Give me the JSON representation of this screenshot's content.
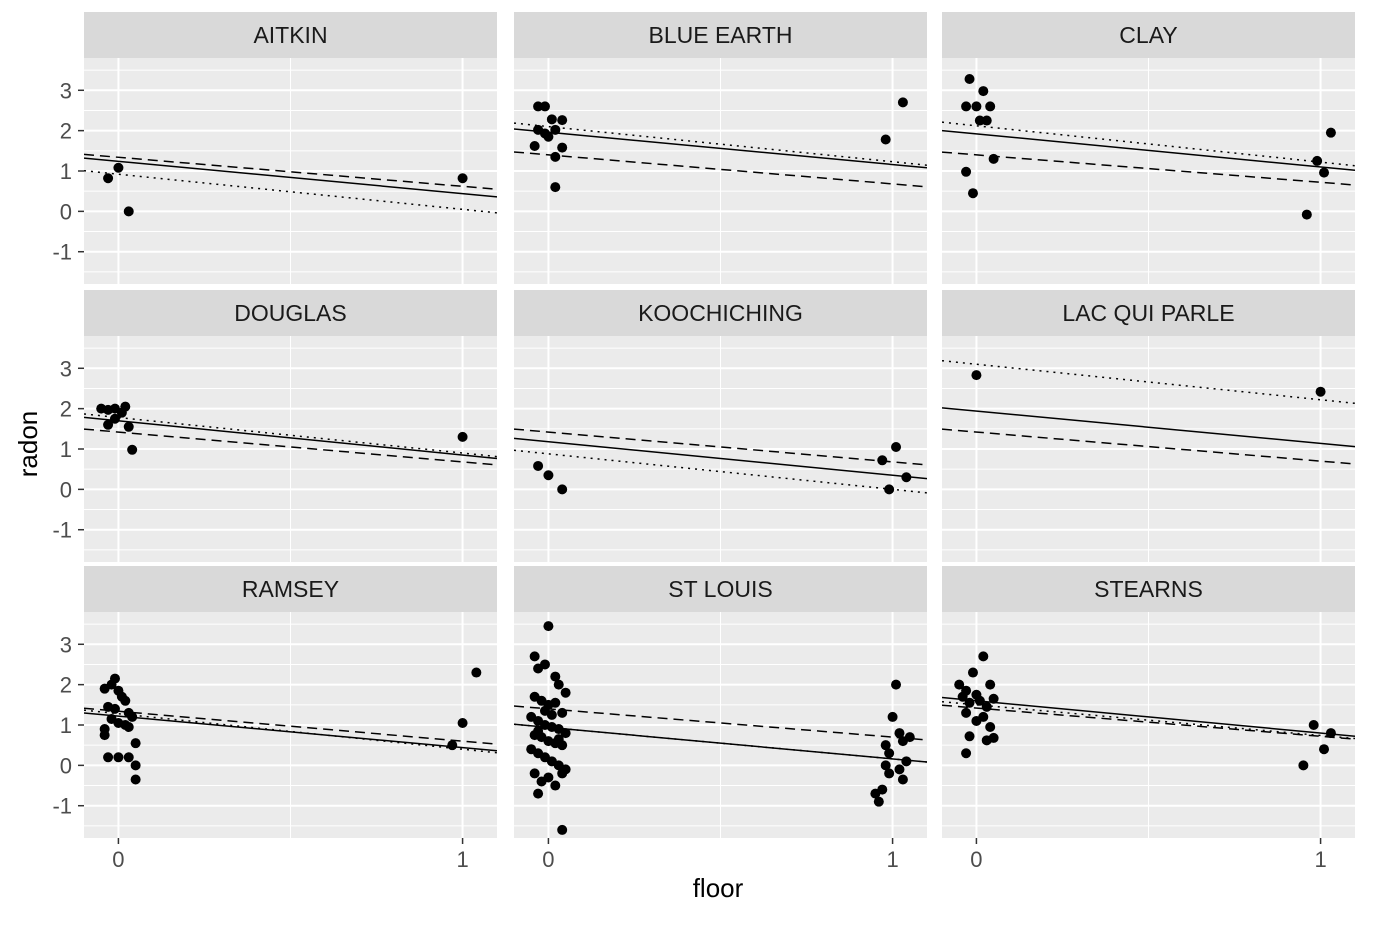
{
  "chart_data": {
    "type": "scatter",
    "xlabel": "floor",
    "ylabel": "radon",
    "xlim": [
      -0.1,
      1.1
    ],
    "ylim": [
      -1.8,
      3.8
    ],
    "x_ticks": [
      0,
      1
    ],
    "x_tick_labels": [
      "0",
      "1"
    ],
    "y_ticks": [
      -1,
      0,
      1,
      2,
      3
    ],
    "y_tick_labels": [
      "-1",
      "0",
      "1",
      "2",
      "3"
    ],
    "grid": true,
    "facet_layout": {
      "rows": 3,
      "cols": 3
    },
    "line_styles": [
      "solid",
      "dashed",
      "dotted"
    ],
    "colors": {
      "panel_background": "#ebebeb",
      "strip_background": "#d9d9d9",
      "grid": "#ffffff",
      "points": "#000000",
      "lines": "#000000"
    },
    "panels": [
      {
        "county": "AITKIN",
        "points": [
          [
            -0.03,
            0.82
          ],
          [
            0.0,
            1.08
          ],
          [
            0.03,
            0.0
          ],
          [
            1.0,
            0.82
          ]
        ],
        "lines": {
          "solid": [
            1.24,
            0.44
          ],
          "dashed": [
            1.34,
            0.62
          ],
          "dotted": [
            0.92,
            0.05
          ]
        }
      },
      {
        "county": "BLUE EARTH",
        "points": [
          [
            -0.03,
            2.6
          ],
          [
            -0.01,
            2.6
          ],
          [
            -0.03,
            2.02
          ],
          [
            -0.01,
            1.93
          ],
          [
            0.01,
            2.28
          ],
          [
            0.04,
            2.26
          ],
          [
            -0.04,
            1.62
          ],
          [
            0.0,
            1.85
          ],
          [
            0.02,
            2.02
          ],
          [
            0.04,
            1.58
          ],
          [
            0.02,
            1.35
          ],
          [
            0.02,
            0.6
          ],
          [
            0.98,
            1.78
          ],
          [
            1.03,
            2.7
          ]
        ],
        "lines": {
          "solid": [
            1.96,
            1.16
          ],
          "dashed": [
            1.4,
            0.68
          ],
          "dotted": [
            2.1,
            1.23
          ]
        }
      },
      {
        "county": "CLAY",
        "points": [
          [
            -0.03,
            2.6
          ],
          [
            -0.02,
            3.28
          ],
          [
            0.0,
            2.6
          ],
          [
            0.02,
            2.98
          ],
          [
            0.04,
            2.6
          ],
          [
            0.01,
            2.25
          ],
          [
            0.03,
            2.25
          ],
          [
            0.05,
            1.3
          ],
          [
            -0.03,
            0.98
          ],
          [
            -0.01,
            0.45
          ],
          [
            0.96,
            -0.08
          ],
          [
            0.99,
            1.25
          ],
          [
            1.01,
            0.96
          ],
          [
            1.03,
            1.95
          ]
        ],
        "lines": {
          "solid": [
            1.92,
            1.1
          ],
          "dashed": [
            1.4,
            0.72
          ],
          "dotted": [
            2.12,
            1.22
          ]
        }
      },
      {
        "county": "DOUGLAS",
        "points": [
          [
            -0.05,
            2.0
          ],
          [
            -0.03,
            1.97
          ],
          [
            -0.01,
            2.0
          ],
          [
            0.02,
            2.05
          ],
          [
            0.01,
            1.9
          ],
          [
            -0.01,
            1.75
          ],
          [
            -0.03,
            1.6
          ],
          [
            0.03,
            1.55
          ],
          [
            0.04,
            0.98
          ],
          [
            1.0,
            1.3
          ]
        ],
        "lines": {
          "solid": [
            1.7,
            0.85
          ],
          "dashed": [
            1.42,
            0.68
          ],
          "dotted": [
            1.78,
            0.9
          ]
        }
      },
      {
        "county": "KOOCHICHING",
        "points": [
          [
            -0.03,
            0.58
          ],
          [
            0.0,
            0.35
          ],
          [
            0.04,
            0.0
          ],
          [
            0.97,
            0.72
          ],
          [
            0.99,
            0.0
          ],
          [
            1.01,
            1.05
          ],
          [
            1.04,
            0.3
          ]
        ],
        "lines": {
          "solid": [
            1.18,
            0.35
          ],
          "dashed": [
            1.42,
            0.68
          ],
          "dotted": [
            0.88,
            0.0
          ]
        }
      },
      {
        "county": "LAC QUI PARLE",
        "points": [
          [
            0.0,
            2.83
          ],
          [
            1.0,
            2.42
          ]
        ],
        "lines": {
          "solid": [
            1.94,
            1.14
          ],
          "dashed": [
            1.42,
            0.7
          ],
          "dotted": [
            3.1,
            2.22
          ]
        }
      },
      {
        "county": "RAMSEY",
        "points": [
          [
            -0.04,
            1.9
          ],
          [
            -0.02,
            2.0
          ],
          [
            -0.01,
            2.15
          ],
          [
            0.0,
            1.85
          ],
          [
            0.01,
            1.7
          ],
          [
            0.02,
            1.6
          ],
          [
            -0.03,
            1.45
          ],
          [
            -0.01,
            1.4
          ],
          [
            0.03,
            1.3
          ],
          [
            0.04,
            1.2
          ],
          [
            -0.02,
            1.15
          ],
          [
            0.0,
            1.05
          ],
          [
            0.02,
            1.0
          ],
          [
            -0.04,
            0.9
          ],
          [
            -0.04,
            0.75
          ],
          [
            0.03,
            0.95
          ],
          [
            0.05,
            0.55
          ],
          [
            -0.03,
            0.2
          ],
          [
            0.0,
            0.2
          ],
          [
            0.03,
            0.2
          ],
          [
            0.05,
            0.0
          ],
          [
            0.05,
            -0.35
          ],
          [
            0.97,
            0.5
          ],
          [
            1.0,
            1.05
          ],
          [
            1.04,
            2.3
          ]
        ],
        "lines": {
          "solid": [
            1.22,
            0.44
          ],
          "dashed": [
            1.34,
            0.6
          ],
          "dotted": [
            1.28,
            0.4
          ]
        }
      },
      {
        "county": "ST LOUIS",
        "points": [
          [
            0.0,
            3.45
          ],
          [
            -0.04,
            2.7
          ],
          [
            -0.03,
            2.4
          ],
          [
            -0.01,
            2.5
          ],
          [
            0.02,
            2.2
          ],
          [
            0.03,
            2.0
          ],
          [
            0.05,
            1.8
          ],
          [
            -0.04,
            1.7
          ],
          [
            -0.02,
            1.6
          ],
          [
            0.0,
            1.5
          ],
          [
            0.02,
            1.55
          ],
          [
            0.04,
            1.3
          ],
          [
            -0.05,
            1.2
          ],
          [
            -0.03,
            1.1
          ],
          [
            -0.01,
            1.0
          ],
          [
            0.01,
            0.95
          ],
          [
            0.03,
            0.9
          ],
          [
            0.05,
            0.8
          ],
          [
            -0.04,
            0.75
          ],
          [
            -0.02,
            0.7
          ],
          [
            0.0,
            0.6
          ],
          [
            0.02,
            0.55
          ],
          [
            0.04,
            0.5
          ],
          [
            -0.05,
            0.4
          ],
          [
            -0.03,
            0.3
          ],
          [
            -0.01,
            0.2
          ],
          [
            0.01,
            0.1
          ],
          [
            0.03,
            0.0
          ],
          [
            0.05,
            -0.1
          ],
          [
            -0.04,
            -0.2
          ],
          [
            -0.02,
            -0.4
          ],
          [
            0.0,
            -0.3
          ],
          [
            0.02,
            -0.5
          ],
          [
            -0.03,
            -0.7
          ],
          [
            0.04,
            -0.2
          ],
          [
            0.04,
            -1.6
          ],
          [
            -0.01,
            1.35
          ],
          [
            0.01,
            1.25
          ],
          [
            -0.03,
            0.85
          ],
          [
            0.03,
            0.65
          ],
          [
            0.95,
            -0.7
          ],
          [
            0.96,
            -0.9
          ],
          [
            0.97,
            -0.6
          ],
          [
            0.98,
            0.5
          ],
          [
            0.99,
            0.3
          ],
          [
            1.0,
            1.2
          ],
          [
            1.01,
            2.0
          ],
          [
            1.02,
            0.8
          ],
          [
            1.03,
            0.6
          ],
          [
            1.04,
            0.1
          ],
          [
            1.05,
            0.7
          ],
          [
            0.99,
            -0.2
          ],
          [
            1.02,
            -0.1
          ],
          [
            1.03,
            -0.35
          ],
          [
            0.98,
            0.0
          ]
        ],
        "lines": {
          "solid": [
            0.94,
            0.16
          ],
          "dashed": [
            1.4,
            0.7
          ],
          "dotted": [
            0.94,
            0.16
          ]
        }
      },
      {
        "county": "STEARNS",
        "points": [
          [
            -0.05,
            2.0
          ],
          [
            -0.03,
            1.85
          ],
          [
            -0.01,
            2.3
          ],
          [
            0.02,
            2.7
          ],
          [
            0.04,
            2.0
          ],
          [
            -0.04,
            1.7
          ],
          [
            -0.02,
            1.55
          ],
          [
            0.0,
            1.75
          ],
          [
            0.01,
            1.6
          ],
          [
            0.03,
            1.45
          ],
          [
            0.05,
            1.65
          ],
          [
            -0.03,
            1.3
          ],
          [
            0.0,
            1.1
          ],
          [
            0.02,
            1.2
          ],
          [
            0.04,
            0.95
          ],
          [
            -0.02,
            0.72
          ],
          [
            0.03,
            0.62
          ],
          [
            0.05,
            0.68
          ],
          [
            -0.03,
            0.3
          ],
          [
            0.95,
            0.0
          ],
          [
            0.98,
            1.0
          ],
          [
            1.01,
            0.4
          ],
          [
            1.03,
            0.8
          ]
        ],
        "lines": {
          "solid": [
            1.6,
            0.8
          ],
          "dashed": [
            1.42,
            0.72
          ],
          "dotted": [
            1.5,
            0.74
          ]
        }
      }
    ]
  }
}
